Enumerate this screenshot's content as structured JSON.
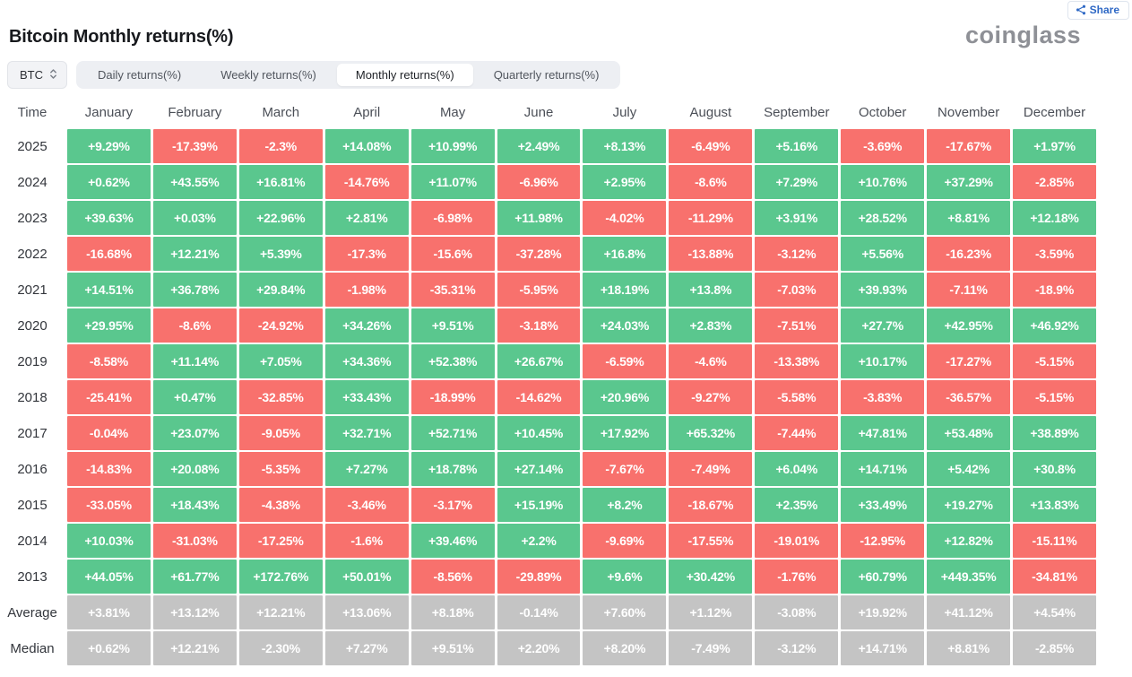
{
  "header": {
    "title": "Bitcoin Monthly returns(%)",
    "logo_text": "coinglass",
    "share_button": {
      "label": "Share",
      "icon": "share-nodes-icon"
    }
  },
  "controls": {
    "coin_selector": {
      "value": "BTC",
      "icon": "updown-chevrons-icon"
    },
    "tabs": [
      {
        "label": "Daily returns(%)",
        "active": false
      },
      {
        "label": "Weekly returns(%)",
        "active": false
      },
      {
        "label": "Monthly returns(%)",
        "active": true
      },
      {
        "label": "Quarterly returns(%)",
        "active": false
      }
    ]
  },
  "colors": {
    "positive_green": "#5ac78e",
    "negative_red": "#f8716d",
    "stat_gray": "#c4c4c4",
    "accent_blue": "#2e68c5"
  },
  "chart_data": {
    "type": "heatmap",
    "title": "Bitcoin Monthly returns(%)",
    "time_column_header": "Time",
    "columns": [
      "January",
      "February",
      "March",
      "April",
      "May",
      "June",
      "July",
      "August",
      "September",
      "October",
      "November",
      "December"
    ],
    "color_rule": "year rows: positive=green, negative=red; Average/Median rows: gray",
    "rows": [
      {
        "label": "2025",
        "kind": "year",
        "values": [
          "+9.29%",
          "-17.39%",
          "-2.3%",
          "+14.08%",
          "+10.99%",
          "+2.49%",
          "+8.13%",
          "-6.49%",
          "+5.16%",
          "-3.69%",
          "-17.67%",
          "+1.97%"
        ]
      },
      {
        "label": "2024",
        "kind": "year",
        "values": [
          "+0.62%",
          "+43.55%",
          "+16.81%",
          "-14.76%",
          "+11.07%",
          "-6.96%",
          "+2.95%",
          "-8.6%",
          "+7.29%",
          "+10.76%",
          "+37.29%",
          "-2.85%"
        ]
      },
      {
        "label": "2023",
        "kind": "year",
        "values": [
          "+39.63%",
          "+0.03%",
          "+22.96%",
          "+2.81%",
          "-6.98%",
          "+11.98%",
          "-4.02%",
          "-11.29%",
          "+3.91%",
          "+28.52%",
          "+8.81%",
          "+12.18%"
        ]
      },
      {
        "label": "2022",
        "kind": "year",
        "values": [
          "-16.68%",
          "+12.21%",
          "+5.39%",
          "-17.3%",
          "-15.6%",
          "-37.28%",
          "+16.8%",
          "-13.88%",
          "-3.12%",
          "+5.56%",
          "-16.23%",
          "-3.59%"
        ]
      },
      {
        "label": "2021",
        "kind": "year",
        "values": [
          "+14.51%",
          "+36.78%",
          "+29.84%",
          "-1.98%",
          "-35.31%",
          "-5.95%",
          "+18.19%",
          "+13.8%",
          "-7.03%",
          "+39.93%",
          "-7.11%",
          "-18.9%"
        ]
      },
      {
        "label": "2020",
        "kind": "year",
        "values": [
          "+29.95%",
          "-8.6%",
          "-24.92%",
          "+34.26%",
          "+9.51%",
          "-3.18%",
          "+24.03%",
          "+2.83%",
          "-7.51%",
          "+27.7%",
          "+42.95%",
          "+46.92%"
        ]
      },
      {
        "label": "2019",
        "kind": "year",
        "values": [
          "-8.58%",
          "+11.14%",
          "+7.05%",
          "+34.36%",
          "+52.38%",
          "+26.67%",
          "-6.59%",
          "-4.6%",
          "-13.38%",
          "+10.17%",
          "-17.27%",
          "-5.15%"
        ]
      },
      {
        "label": "2018",
        "kind": "year",
        "values": [
          "-25.41%",
          "+0.47%",
          "-32.85%",
          "+33.43%",
          "-18.99%",
          "-14.62%",
          "+20.96%",
          "-9.27%",
          "-5.58%",
          "-3.83%",
          "-36.57%",
          "-5.15%"
        ]
      },
      {
        "label": "2017",
        "kind": "year",
        "values": [
          "-0.04%",
          "+23.07%",
          "-9.05%",
          "+32.71%",
          "+52.71%",
          "+10.45%",
          "+17.92%",
          "+65.32%",
          "-7.44%",
          "+47.81%",
          "+53.48%",
          "+38.89%"
        ]
      },
      {
        "label": "2016",
        "kind": "year",
        "values": [
          "-14.83%",
          "+20.08%",
          "-5.35%",
          "+7.27%",
          "+18.78%",
          "+27.14%",
          "-7.67%",
          "-7.49%",
          "+6.04%",
          "+14.71%",
          "+5.42%",
          "+30.8%"
        ]
      },
      {
        "label": "2015",
        "kind": "year",
        "values": [
          "-33.05%",
          "+18.43%",
          "-4.38%",
          "-3.46%",
          "-3.17%",
          "+15.19%",
          "+8.2%",
          "-18.67%",
          "+2.35%",
          "+33.49%",
          "+19.27%",
          "+13.83%"
        ]
      },
      {
        "label": "2014",
        "kind": "year",
        "values": [
          "+10.03%",
          "-31.03%",
          "-17.25%",
          "-1.6%",
          "+39.46%",
          "+2.2%",
          "-9.69%",
          "-17.55%",
          "-19.01%",
          "-12.95%",
          "+12.82%",
          "-15.11%"
        ]
      },
      {
        "label": "2013",
        "kind": "year",
        "values": [
          "+44.05%",
          "+61.77%",
          "+172.76%",
          "+50.01%",
          "-8.56%",
          "-29.89%",
          "+9.6%",
          "+30.42%",
          "-1.76%",
          "+60.79%",
          "+449.35%",
          "-34.81%"
        ]
      },
      {
        "label": "Average",
        "kind": "stat",
        "values": [
          "+3.81%",
          "+13.12%",
          "+12.21%",
          "+13.06%",
          "+8.18%",
          "-0.14%",
          "+7.60%",
          "+1.12%",
          "-3.08%",
          "+19.92%",
          "+41.12%",
          "+4.54%"
        ]
      },
      {
        "label": "Median",
        "kind": "stat",
        "values": [
          "+0.62%",
          "+12.21%",
          "-2.30%",
          "+7.27%",
          "+9.51%",
          "+2.20%",
          "+8.20%",
          "-7.49%",
          "-3.12%",
          "+14.71%",
          "+8.81%",
          "-2.85%"
        ]
      }
    ]
  }
}
